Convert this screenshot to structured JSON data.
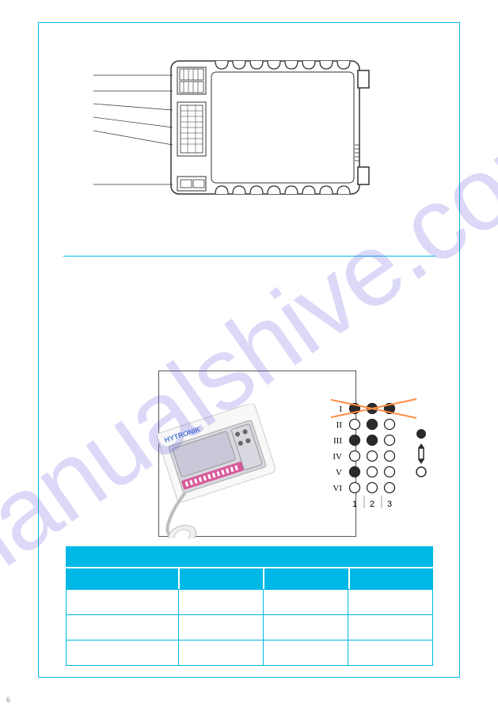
{
  "header": {
    "product_heading": ""
  },
  "terminals": {
    "labels": [
      "",
      "",
      "",
      "",
      "",
      ""
    ],
    "line_color": "#333333"
  },
  "section": {
    "title": ""
  },
  "device_diagram": {
    "outline_color": "#333333",
    "fill_color": "#ffffff",
    "connector_count": 8,
    "slot_count": 9
  },
  "photo": {
    "brand_text": "HYTRONIK",
    "brand_color": "#4a7bd0",
    "label_strip_color": "#d85a9a",
    "body_color": "#e8e8e8",
    "accent_color": "#b8b8c8"
  },
  "dip_reference": {
    "rows": [
      "I",
      "II",
      "III",
      "IV",
      "V",
      "VI"
    ],
    "cols": [
      "1",
      "2",
      "3"
    ],
    "pattern": [
      [
        1,
        1,
        1
      ],
      [
        0,
        1,
        0
      ],
      [
        1,
        1,
        0
      ],
      [
        0,
        0,
        0
      ],
      [
        1,
        0,
        0
      ],
      [
        0,
        0,
        0
      ]
    ],
    "filled_color": "#2a2a2a",
    "empty_color": "#ffffff",
    "border_color": "#2a2a2a",
    "cross_color": "#ff8c42",
    "values": [
      "",
      "",
      "",
      "",
      "",
      ""
    ]
  },
  "legend": {
    "on_label": "",
    "off_label": ""
  },
  "table": {
    "title": "",
    "headers": [
      "",
      "",
      "",
      ""
    ],
    "rows": [
      [
        "",
        "",
        "",
        ""
      ],
      [
        "",
        "",
        "",
        ""
      ],
      [
        "",
        "",
        "",
        ""
      ]
    ],
    "header_bg": "#00b8e6",
    "border_color": "#00b8e6"
  },
  "watermark_text": "manualshive.com",
  "page_number": "6"
}
